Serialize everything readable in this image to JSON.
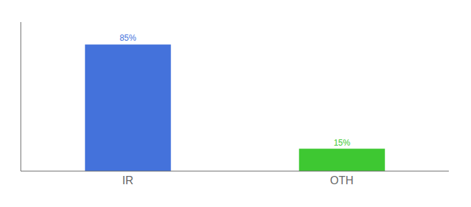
{
  "chart_data": {
    "type": "bar",
    "categories": [
      "IR",
      "OTH"
    ],
    "values": [
      85,
      15
    ],
    "value_labels": [
      "85%",
      "15%"
    ],
    "colors": [
      "#4472db",
      "#3ec832"
    ],
    "ylim": [
      0,
      100
    ],
    "data_labels": true,
    "tick_labels": "x",
    "grid": false
  }
}
